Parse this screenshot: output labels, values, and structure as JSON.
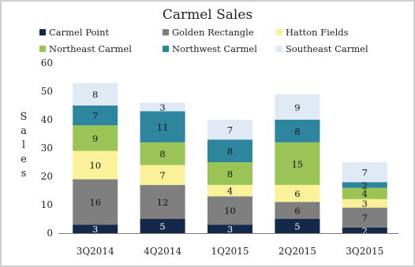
{
  "chart_data": {
    "type": "bar",
    "stacked": true,
    "title": "Carmel Sales",
    "ylabel": "Sales",
    "xlabel": "",
    "ylim": [
      0,
      60
    ],
    "yticks": [
      0,
      10,
      20,
      30,
      40,
      50,
      60
    ],
    "grid": false,
    "legend_position": "top",
    "categories": [
      "3Q2014",
      "4Q2014",
      "1Q2015",
      "2Q2015",
      "3Q2015"
    ],
    "series": [
      {
        "name": "Carmel Point",
        "color": "#14284a",
        "label_color": "#ffffff",
        "values": [
          3,
          5,
          3,
          5,
          2
        ]
      },
      {
        "name": "Golden Rectangle",
        "color": "#7f7f7f",
        "label_color": "#111111",
        "values": [
          16,
          12,
          10,
          6,
          7
        ]
      },
      {
        "name": "Hatton Fields",
        "color": "#fbf198",
        "label_color": "#111111",
        "values": [
          10,
          7,
          4,
          6,
          3
        ]
      },
      {
        "name": "Northeast Carmel",
        "color": "#9ac556",
        "label_color": "#111111",
        "values": [
          9,
          8,
          8,
          15,
          4
        ]
      },
      {
        "name": "Northwest Carmel",
        "color": "#2d869e",
        "label_color": "#111111",
        "values": [
          7,
          11,
          8,
          8,
          2
        ]
      },
      {
        "name": "Southeast Carmel",
        "color": "#dfeaf4",
        "label_color": "#111111",
        "values": [
          8,
          3,
          7,
          9,
          7
        ]
      }
    ]
  }
}
